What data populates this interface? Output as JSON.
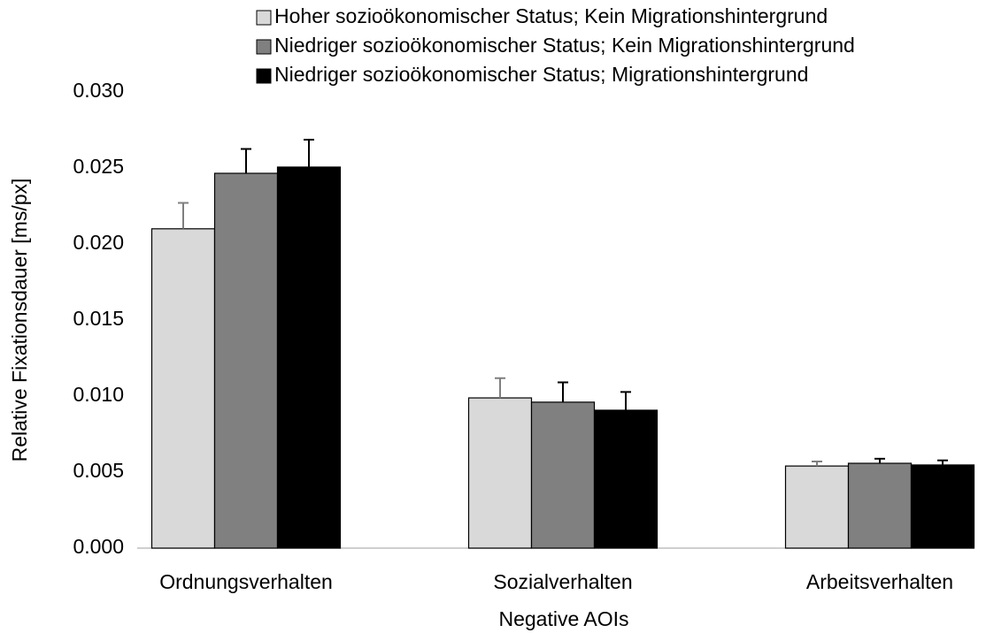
{
  "chart_data": {
    "type": "bar",
    "x_label": "Negative AOIs",
    "y_label": "Relative Fixationsdauer [ms/px]",
    "categories": [
      "Ordnungsverhalten",
      "Sozialverhalten",
      "Arbeitsverhalten"
    ],
    "series": [
      {
        "name": "Hoher sozioökonomischer Status; Kein Migrationshintergrund",
        "color": "#d9d9d9",
        "values": [
          0.021,
          0.00988,
          0.0054
        ],
        "errors": [
          0.0017,
          0.0013,
          0.0003
        ]
      },
      {
        "name": "Niedriger sozioökonomischer Status; Kein Migrationshintergrund",
        "color": "#808080",
        "values": [
          0.02465,
          0.0096,
          0.00558
        ],
        "errors": [
          0.0016,
          0.0013,
          0.0003
        ]
      },
      {
        "name": "Niedriger sozioökonomischer Status; Migrationshintergrund",
        "color": "#000000",
        "values": [
          0.02506,
          0.00907,
          0.00547
        ],
        "errors": [
          0.0018,
          0.0012,
          0.0003
        ]
      }
    ],
    "ylim": [
      0,
      0.03
    ],
    "yticks": [
      {
        "value": 0,
        "label": "0.000"
      },
      {
        "value": 0.005,
        "label": "0.005"
      },
      {
        "value": 0.01,
        "label": "0.010"
      },
      {
        "value": 0.015,
        "label": "0.015"
      },
      {
        "value": 0.02,
        "label": "0.020"
      },
      {
        "value": 0.025,
        "label": "0.025"
      },
      {
        "value": 0.03,
        "label": "0.030"
      }
    ],
    "grid": false,
    "legend": "top"
  }
}
